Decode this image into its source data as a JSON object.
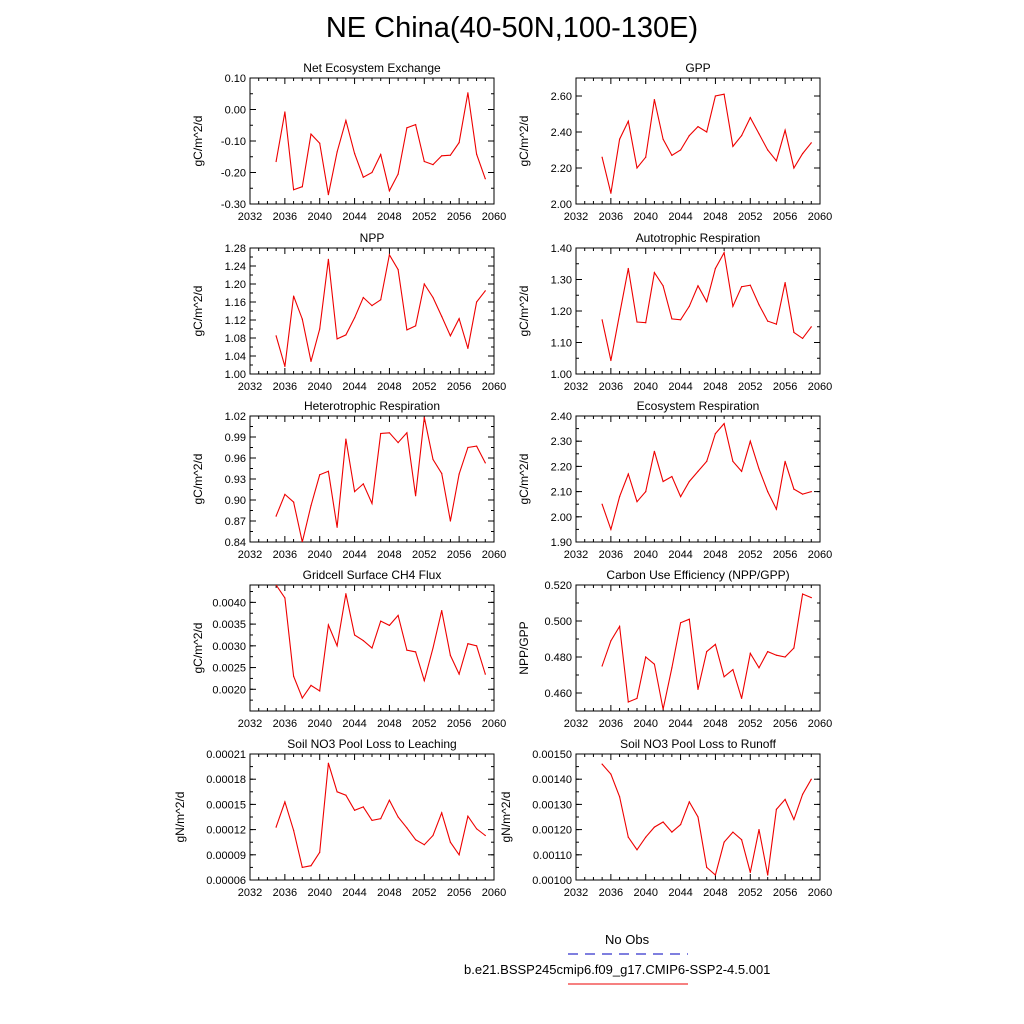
{
  "title": "NE China(40-50N,100-130E)",
  "legend": {
    "obs_label": "No Obs",
    "obs_color": "#3333cc",
    "model_label": "b.e21.BSSP245cmip6.f09_g17.CMIP6-SSP2-4.5.001",
    "model_color": "#ee0000"
  },
  "chart_data": [
    {
      "type": "line",
      "title": "Net Ecosystem Exchange",
      "ylabel": "gC/m^2/d",
      "xlim": [
        2032,
        2060
      ],
      "ylim": [
        -0.3,
        0.1
      ],
      "xticks": [
        "2032",
        "2036",
        "2040",
        "2044",
        "2048",
        "2052",
        "2056",
        "2060"
      ],
      "yticks": [
        "-0.30",
        "-0.20",
        "-0.10",
        "0.00",
        "0.10"
      ],
      "series": [
        {
          "x": [
            2035,
            2036,
            2037,
            2038,
            2039,
            2040,
            2041,
            2042,
            2043,
            2044,
            2045,
            2046,
            2047,
            2048,
            2049,
            2050,
            2051,
            2052,
            2053,
            2054,
            2055,
            2056,
            2057,
            2058,
            2059
          ],
          "values": [
            -0.165,
            -0.008,
            -0.255,
            -0.245,
            -0.078,
            -0.107,
            -0.27,
            -0.135,
            -0.035,
            -0.14,
            -0.215,
            -0.2,
            -0.143,
            -0.258,
            -0.205,
            -0.058,
            -0.048,
            -0.165,
            -0.175,
            -0.147,
            -0.145,
            -0.105,
            0.053,
            -0.142,
            -0.22
          ]
        }
      ]
    },
    {
      "type": "line",
      "title": "GPP",
      "ylabel": "gC/m^2/d",
      "xlim": [
        2032,
        2060
      ],
      "ylim": [
        2.0,
        2.7
      ],
      "xticks": [
        "2032",
        "2036",
        "2040",
        "2044",
        "2048",
        "2052",
        "2056",
        "2060"
      ],
      "yticks": [
        "2.00",
        "2.20",
        "2.40",
        "2.60"
      ],
      "series": [
        {
          "x": [
            2035,
            2036,
            2037,
            2038,
            2039,
            2040,
            2041,
            2042,
            2043,
            2044,
            2045,
            2046,
            2047,
            2048,
            2049,
            2050,
            2051,
            2052,
            2053,
            2054,
            2055,
            2056,
            2057,
            2058,
            2059
          ],
          "values": [
            2.26,
            2.06,
            2.36,
            2.46,
            2.2,
            2.26,
            2.58,
            2.36,
            2.27,
            2.3,
            2.38,
            2.43,
            2.4,
            2.6,
            2.61,
            2.32,
            2.38,
            2.48,
            2.39,
            2.3,
            2.24,
            2.41,
            2.2,
            2.28,
            2.34
          ]
        }
      ]
    },
    {
      "type": "line",
      "title": "NPP",
      "ylabel": "gC/m^2/d",
      "xlim": [
        2032,
        2060
      ],
      "ylim": [
        1.0,
        1.28
      ],
      "xticks": [
        "2032",
        "2036",
        "2040",
        "2044",
        "2048",
        "2052",
        "2056",
        "2060"
      ],
      "yticks": [
        "1.00",
        "1.04",
        "1.08",
        "1.12",
        "1.16",
        "1.20",
        "1.24",
        "1.28"
      ],
      "series": [
        {
          "x": [
            2035,
            2036,
            2037,
            2038,
            2039,
            2040,
            2041,
            2042,
            2043,
            2044,
            2045,
            2046,
            2047,
            2048,
            2049,
            2050,
            2051,
            2052,
            2053,
            2054,
            2055,
            2056,
            2057,
            2058,
            2059
          ],
          "values": [
            1.085,
            1.017,
            1.173,
            1.122,
            1.028,
            1.1,
            1.255,
            1.078,
            1.087,
            1.125,
            1.17,
            1.152,
            1.165,
            1.265,
            1.232,
            1.098,
            1.107,
            1.2,
            1.17,
            1.128,
            1.085,
            1.123,
            1.057,
            1.16,
            1.185
          ]
        }
      ]
    },
    {
      "type": "line",
      "title": "Autotrophic Respiration",
      "ylabel": "gC/m^2/d",
      "xlim": [
        2032,
        2060
      ],
      "ylim": [
        1.0,
        1.4
      ],
      "xticks": [
        "2032",
        "2036",
        "2040",
        "2044",
        "2048",
        "2052",
        "2056",
        "2060"
      ],
      "yticks": [
        "1.00",
        "1.10",
        "1.20",
        "1.30",
        "1.40"
      ],
      "series": [
        {
          "x": [
            2035,
            2036,
            2037,
            2038,
            2039,
            2040,
            2041,
            2042,
            2043,
            2044,
            2045,
            2046,
            2047,
            2048,
            2049,
            2050,
            2051,
            2052,
            2053,
            2054,
            2055,
            2056,
            2057,
            2058,
            2059
          ],
          "values": [
            1.172,
            1.043,
            1.19,
            1.335,
            1.165,
            1.163,
            1.322,
            1.28,
            1.175,
            1.172,
            1.215,
            1.28,
            1.23,
            1.335,
            1.385,
            1.215,
            1.277,
            1.282,
            1.22,
            1.168,
            1.158,
            1.29,
            1.132,
            1.113,
            1.15
          ]
        }
      ]
    },
    {
      "type": "line",
      "title": "Heterotrophic Respiration",
      "ylabel": "gC/m^2/d",
      "xlim": [
        2032,
        2060
      ],
      "ylim": [
        0.84,
        1.02
      ],
      "xticks": [
        "2032",
        "2036",
        "2040",
        "2044",
        "2048",
        "2052",
        "2056",
        "2060"
      ],
      "yticks": [
        "0.84",
        "0.87",
        "0.90",
        "0.93",
        "0.96",
        "0.99",
        "1.02"
      ],
      "series": [
        {
          "x": [
            2035,
            2036,
            2037,
            2038,
            2039,
            2040,
            2041,
            2042,
            2043,
            2044,
            2045,
            2046,
            2047,
            2048,
            2049,
            2050,
            2051,
            2052,
            2053,
            2054,
            2055,
            2056,
            2057,
            2058,
            2059
          ],
          "values": [
            0.877,
            0.908,
            0.897,
            0.84,
            0.892,
            0.936,
            0.941,
            0.861,
            0.987,
            0.912,
            0.923,
            0.895,
            0.995,
            0.996,
            0.982,
            0.996,
            0.906,
            1.018,
            0.958,
            0.938,
            0.87,
            0.937,
            0.975,
            0.977,
            0.953
          ]
        }
      ]
    },
    {
      "type": "line",
      "title": "Ecosystem Respiration",
      "ylabel": "gC/m^2/d",
      "xlim": [
        2032,
        2060
      ],
      "ylim": [
        1.9,
        2.4
      ],
      "xticks": [
        "2032",
        "2036",
        "2040",
        "2044",
        "2048",
        "2052",
        "2056",
        "2060"
      ],
      "yticks": [
        "1.90",
        "2.00",
        "2.10",
        "2.20",
        "2.30",
        "2.40"
      ],
      "series": [
        {
          "x": [
            2035,
            2036,
            2037,
            2038,
            2039,
            2040,
            2041,
            2042,
            2043,
            2044,
            2045,
            2046,
            2047,
            2048,
            2049,
            2050,
            2051,
            2052,
            2053,
            2054,
            2055,
            2056,
            2057,
            2058,
            2059
          ],
          "values": [
            2.05,
            1.95,
            2.08,
            2.17,
            2.06,
            2.1,
            2.26,
            2.14,
            2.16,
            2.08,
            2.14,
            2.18,
            2.22,
            2.33,
            2.37,
            2.22,
            2.18,
            2.3,
            2.19,
            2.1,
            2.03,
            2.22,
            2.11,
            2.09,
            2.1
          ]
        }
      ]
    },
    {
      "type": "line",
      "title": "Gridcell Surface CH4 Flux",
      "ylabel": "gC/m^2/d",
      "xlim": [
        2032,
        2060
      ],
      "ylim": [
        0.0015,
        0.0044
      ],
      "xticks": [
        "2032",
        "2036",
        "2040",
        "2044",
        "2048",
        "2052",
        "2056",
        "2060"
      ],
      "yticks": [
        "0.0020",
        "0.0025",
        "0.0030",
        "0.0035",
        "0.0040"
      ],
      "series": [
        {
          "x": [
            2035,
            2036,
            2037,
            2038,
            2039,
            2040,
            2041,
            2042,
            2043,
            2044,
            2045,
            2046,
            2047,
            2048,
            2049,
            2050,
            2051,
            2052,
            2053,
            2054,
            2055,
            2056,
            2057,
            2058,
            2059
          ],
          "values": [
            0.0044,
            0.0041,
            0.0023,
            0.0018,
            0.00209,
            0.00196,
            0.00348,
            0.003,
            0.0042,
            0.00325,
            0.00312,
            0.00295,
            0.00357,
            0.00347,
            0.0037,
            0.0029,
            0.00286,
            0.0022,
            0.00295,
            0.00381,
            0.00278,
            0.00235,
            0.00305,
            0.003,
            0.00235
          ]
        }
      ]
    },
    {
      "type": "line",
      "title": "Carbon Use Efficiency (NPP/GPP)",
      "ylabel": "NPP/GPP",
      "xlim": [
        2032,
        2060
      ],
      "ylim": [
        0.45,
        0.52
      ],
      "xticks": [
        "2032",
        "2036",
        "2040",
        "2044",
        "2048",
        "2052",
        "2056",
        "2060"
      ],
      "yticks": [
        "0.460",
        "0.480",
        "0.500",
        "0.520"
      ],
      "series": [
        {
          "x": [
            2035,
            2036,
            2037,
            2038,
            2039,
            2040,
            2041,
            2042,
            2043,
            2044,
            2045,
            2046,
            2047,
            2048,
            2049,
            2050,
            2051,
            2052,
            2053,
            2054,
            2055,
            2056,
            2057,
            2058,
            2059
          ],
          "values": [
            0.475,
            0.489,
            0.497,
            0.455,
            0.457,
            0.48,
            0.476,
            0.451,
            0.474,
            0.499,
            0.501,
            0.462,
            0.483,
            0.487,
            0.469,
            0.473,
            0.457,
            0.482,
            0.474,
            0.483,
            0.481,
            0.48,
            0.485,
            0.515,
            0.513
          ]
        }
      ]
    },
    {
      "type": "line",
      "title": "Soil NO3 Pool Loss to Leaching",
      "ylabel": "gN/m^2/d",
      "xlim": [
        2032,
        2060
      ],
      "ylim": [
        6e-05,
        0.00021
      ],
      "xticks": [
        "2032",
        "2036",
        "2040",
        "2044",
        "2048",
        "2052",
        "2056",
        "2060"
      ],
      "yticks": [
        "0.00006",
        "0.00009",
        "0.00012",
        "0.00015",
        "0.00018",
        "0.00021"
      ],
      "series": [
        {
          "x": [
            2035,
            2036,
            2037,
            2038,
            2039,
            2040,
            2041,
            2042,
            2043,
            2044,
            2045,
            2046,
            2047,
            2048,
            2049,
            2050,
            2051,
            2052,
            2053,
            2054,
            2055,
            2056,
            2057,
            2058,
            2059
          ],
          "values": [
            0.000123,
            0.000153,
            0.000119,
            7.5e-05,
            7.7e-05,
            9.3e-05,
            0.000199,
            0.000165,
            0.000161,
            0.000143,
            0.000147,
            0.000131,
            0.000133,
            0.000155,
            0.000135,
            0.000122,
            0.000108,
            0.000102,
            0.000113,
            0.00014,
            0.000105,
            9e-05,
            0.000136,
            0.000121,
            0.000113
          ]
        }
      ]
    },
    {
      "type": "line",
      "title": "Soil NO3 Pool Loss to Runoff",
      "ylabel": "gN/m^2/d",
      "xlim": [
        2032,
        2060
      ],
      "ylim": [
        0.001,
        0.0015
      ],
      "xticks": [
        "2032",
        "2036",
        "2040",
        "2044",
        "2048",
        "2052",
        "2056",
        "2060"
      ],
      "yticks": [
        "0.00100",
        "0.00110",
        "0.00120",
        "0.00130",
        "0.00140",
        "0.00150"
      ],
      "series": [
        {
          "x": [
            2035,
            2036,
            2037,
            2038,
            2039,
            2040,
            2041,
            2042,
            2043,
            2044,
            2045,
            2046,
            2047,
            2048,
            2049,
            2050,
            2051,
            2052,
            2053,
            2054,
            2055,
            2056,
            2057,
            2058,
            2059
          ],
          "values": [
            0.00146,
            0.00142,
            0.00133,
            0.00117,
            0.00112,
            0.00117,
            0.00121,
            0.00123,
            0.00119,
            0.00122,
            0.00131,
            0.00125,
            0.00105,
            0.00102,
            0.00115,
            0.00119,
            0.00116,
            0.00103,
            0.0012,
            0.00102,
            0.00128,
            0.00132,
            0.00124,
            0.00134,
            0.0014
          ]
        }
      ]
    }
  ]
}
